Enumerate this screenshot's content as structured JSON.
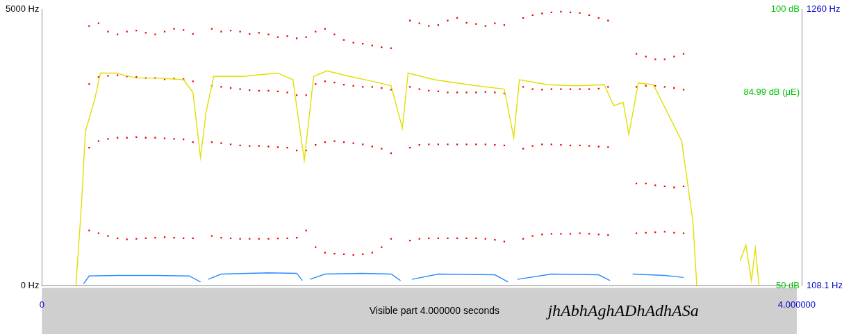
{
  "chart_data": {
    "type": "scatter",
    "title": "jhAbhAghADhAdhASa",
    "x_label": "Visible part 4.000000 seconds",
    "xlim": [
      0,
      4
    ],
    "xticks": [
      0,
      {
        "value": 4,
        "label": "4.000000"
      }
    ],
    "ylim": [
      0,
      5000
    ],
    "yticks": [
      {
        "value": 0,
        "label": "0 Hz"
      },
      {
        "value": 5000,
        "label": "5000 Hz"
      }
    ],
    "y2lim": [
      50,
      100
    ],
    "y2ticks": [
      {
        "value": 50,
        "label": "50 dB"
      },
      {
        "value": 84.99,
        "label": "84.99 dB (μE)"
      },
      {
        "value": 100,
        "label": "100 dB"
      }
    ],
    "y3lim": [
      108.1,
      1260
    ],
    "y3ticks": [
      {
        "value": 108.1,
        "label": "108.1 Hz"
      },
      {
        "value": 1260,
        "label": "1260 Hz"
      }
    ],
    "grid": false,
    "x": [
      0.25,
      0.3,
      0.35,
      0.4,
      0.45,
      0.5,
      0.55,
      0.6,
      0.65,
      0.7,
      0.75,
      0.8,
      0.9,
      0.95,
      1.0,
      1.05,
      1.1,
      1.15,
      1.2,
      1.25,
      1.3,
      1.35,
      1.4,
      1.45,
      1.5,
      1.55,
      1.6,
      1.65,
      1.7,
      1.75,
      1.8,
      1.85,
      1.95,
      2.0,
      2.05,
      2.1,
      2.15,
      2.2,
      2.25,
      2.3,
      2.35,
      2.4,
      2.45,
      2.55,
      2.6,
      2.65,
      2.7,
      2.75,
      2.8,
      2.85,
      2.9,
      2.95,
      3.0,
      3.15,
      3.2,
      3.25,
      3.3,
      3.35,
      3.4
    ],
    "series": [
      {
        "type": "scatter",
        "marker": "square",
        "color": "#ee0000",
        "values": [
          1000,
          950,
          900,
          860,
          840,
          850,
          860,
          870,
          880,
          870,
          860,
          860,
          900,
          870,
          860,
          850,
          850,
          850,
          850,
          855,
          860,
          870,
          1000,
          700,
          600,
          580,
          570,
          560,
          570,
          600,
          700,
          850,
          820,
          850,
          860,
          860,
          860,
          860,
          860,
          860,
          850,
          830,
          800,
          850,
          900,
          930,
          940,
          940,
          940,
          950,
          940,
          930,
          920,
          950,
          960,
          970,
          980,
          960,
          950
        ]
      },
      {
        "type": "scatter",
        "marker": "square",
        "color": "#ee0000",
        "values": [
          2500,
          2620,
          2660,
          2680,
          2680,
          2690,
          2680,
          2680,
          2670,
          2660,
          2650,
          2600,
          2600,
          2580,
          2560,
          2540,
          2530,
          2530,
          2520,
          2510,
          2500,
          2450,
          2450,
          2550,
          2600,
          2620,
          2600,
          2580,
          2560,
          2520,
          2480,
          2400,
          2500,
          2550,
          2560,
          2560,
          2560,
          2560,
          2560,
          2560,
          2560,
          2550,
          2540,
          2480,
          2530,
          2560,
          2560,
          2550,
          2540,
          2540,
          2530,
          2520,
          2510,
          1850,
          1850,
          1820,
          1800,
          1780,
          1800
        ]
      },
      {
        "type": "scatter",
        "marker": "square",
        "color": "#ee0000",
        "values": [
          3650,
          3780,
          3800,
          3810,
          3790,
          3780,
          3760,
          3760,
          3740,
          3750,
          3740,
          3700,
          3620,
          3600,
          3580,
          3560,
          3540,
          3530,
          3530,
          3520,
          3500,
          3450,
          3450,
          3650,
          3700,
          3680,
          3640,
          3620,
          3600,
          3600,
          3580,
          3550,
          3600,
          3560,
          3530,
          3520,
          3500,
          3500,
          3500,
          3500,
          3510,
          3500,
          3480,
          3600,
          3560,
          3550,
          3560,
          3560,
          3560,
          3560,
          3560,
          3570,
          3600,
          3600,
          3620,
          3620,
          3600,
          3580,
          3550
        ]
      },
      {
        "type": "scatter",
        "marker": "square",
        "color": "#ee0000",
        "values": [
          4700,
          4750,
          4600,
          4550,
          4600,
          4620,
          4580,
          4550,
          4600,
          4650,
          4630,
          4560,
          4650,
          4600,
          4620,
          4600,
          4560,
          4580,
          4550,
          4500,
          4520,
          4480,
          4500,
          4600,
          4650,
          4550,
          4450,
          4400,
          4380,
          4350,
          4320,
          4300,
          4800,
          4750,
          4700,
          4720,
          4800,
          4850,
          4760,
          4740,
          4700,
          4750,
          4720,
          4850,
          4900,
          4930,
          4950,
          4960,
          4950,
          4940,
          4900,
          4850,
          4800,
          4200,
          4150,
          4100,
          4100,
          4150,
          4200
        ]
      },
      {
        "type": "line",
        "axis": "y2",
        "line_style": "solid",
        "color": "#e0e000",
        "x": [
          0.18,
          0.21,
          0.23,
          0.28,
          0.31,
          0.39,
          0.5,
          0.61,
          0.75,
          0.8,
          0.84,
          0.87,
          0.91,
          1.06,
          1.25,
          1.33,
          1.39,
          1.44,
          1.51,
          1.63,
          1.74,
          1.85,
          1.91,
          1.94,
          2.08,
          2.3,
          2.45,
          2.5,
          2.53,
          2.68,
          2.83,
          2.98,
          3.03,
          3.08,
          3.11,
          3.16,
          3.24,
          3.33,
          3.39,
          3.45,
          3.47,
          3.55,
          3.7,
          3.73,
          3.76,
          3.78,
          3.8
        ],
        "values": [
          50,
          65,
          77.9,
          83.8,
          88.5,
          88.5,
          87.6,
          87.6,
          87.3,
          85,
          73.2,
          81.5,
          87.9,
          87.9,
          88.5,
          87.3,
          72.7,
          87.9,
          88.9,
          87.9,
          87.1,
          86.2,
          78.5,
          88.5,
          87.3,
          86.2,
          85.6,
          76.8,
          87.3,
          86.4,
          86.2,
          86.4,
          82.6,
          83.2,
          77.4,
          86.7,
          86.4,
          80.3,
          76.2,
          61.5,
          50,
          null,
          54.5,
          57.4,
          50.9,
          56.8,
          50
        ]
      },
      {
        "type": "line",
        "axis": "y3",
        "line_style": "solid",
        "color": "#2a8cff",
        "x": [
          0.22,
          0.25,
          0.4,
          0.6,
          0.78,
          0.84,
          0.86,
          0.88,
          0.95,
          1.2,
          1.35,
          1.38,
          1.4,
          1.42,
          1.5,
          1.7,
          1.85,
          1.9,
          1.93,
          1.96,
          2.1,
          2.4,
          2.47,
          2.5,
          2.52,
          2.7,
          2.95,
          3.01,
          3.06,
          3.13,
          3.3,
          3.4
        ],
        "values": [
          116,
          149,
          151,
          151,
          149,
          124,
          null,
          135,
          157,
          162,
          160,
          130,
          null,
          135,
          157,
          160,
          157,
          130,
          null,
          135,
          157,
          154,
          124,
          null,
          135,
          157,
          154,
          130,
          null,
          157,
          151,
          143
        ]
      }
    ]
  }
}
